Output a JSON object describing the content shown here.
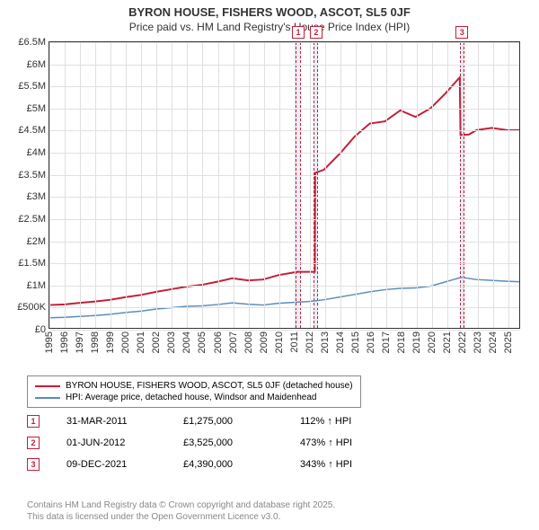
{
  "title": {
    "line1": "BYRON HOUSE, FISHERS WOOD, ASCOT, SL5 0JF",
    "line2": "Price paid vs. HM Land Registry's House Price Index (HPI)"
  },
  "chart": {
    "type": "line",
    "x_min": 1995,
    "x_max": 2025.8,
    "y_min": 0,
    "y_max": 6500000,
    "x_ticks": [
      1995,
      1996,
      1997,
      1998,
      1999,
      2000,
      2001,
      2002,
      2003,
      2004,
      2005,
      2006,
      2007,
      2008,
      2009,
      2010,
      2011,
      2012,
      2013,
      2014,
      2015,
      2016,
      2017,
      2018,
      2019,
      2020,
      2021,
      2022,
      2023,
      2024,
      2025
    ],
    "y_ticks": [
      {
        "v": 0,
        "label": "£0"
      },
      {
        "v": 500000,
        "label": "£500K"
      },
      {
        "v": 1000000,
        "label": "£1M"
      },
      {
        "v": 1500000,
        "label": "£1.5M"
      },
      {
        "v": 2000000,
        "label": "£2M"
      },
      {
        "v": 2500000,
        "label": "£2.5M"
      },
      {
        "v": 3000000,
        "label": "£3M"
      },
      {
        "v": 3500000,
        "label": "£3.5M"
      },
      {
        "v": 4000000,
        "label": "£4M"
      },
      {
        "v": 4500000,
        "label": "£4.5M"
      },
      {
        "v": 5000000,
        "label": "£5M"
      },
      {
        "v": 5500000,
        "label": "£5.5M"
      },
      {
        "v": 6000000,
        "label": "£6M"
      },
      {
        "v": 6500000,
        "label": "£6.5M"
      }
    ],
    "grid_color": "#e0e0e0",
    "background_color": "#ffffff",
    "marker_band_color": "#e8eef5",
    "marker_border_color": "#c41e3a",
    "series": [
      {
        "name": "property",
        "label": "BYRON HOUSE, FISHERS WOOD, ASCOT, SL5 0JF (detached house)",
        "color": "#c41e3a",
        "width": 2,
        "points": [
          [
            1995,
            520000
          ],
          [
            1996,
            535000
          ],
          [
            1997,
            570000
          ],
          [
            1998,
            600000
          ],
          [
            1999,
            640000
          ],
          [
            2000,
            700000
          ],
          [
            2001,
            750000
          ],
          [
            2002,
            820000
          ],
          [
            2003,
            880000
          ],
          [
            2004,
            940000
          ],
          [
            2005,
            980000
          ],
          [
            2006,
            1050000
          ],
          [
            2007,
            1130000
          ],
          [
            2008,
            1080000
          ],
          [
            2009,
            1100000
          ],
          [
            2010,
            1200000
          ],
          [
            2011,
            1260000
          ],
          [
            2011.25,
            1275000
          ],
          [
            2012,
            1275000
          ],
          [
            2012.4,
            1275000
          ],
          [
            2012.42,
            3525000
          ],
          [
            2013,
            3600000
          ],
          [
            2014,
            3950000
          ],
          [
            2015,
            4350000
          ],
          [
            2016,
            4650000
          ],
          [
            2017,
            4700000
          ],
          [
            2018,
            4950000
          ],
          [
            2019,
            4800000
          ],
          [
            2020,
            5000000
          ],
          [
            2021,
            5350000
          ],
          [
            2021.9,
            5700000
          ],
          [
            2021.95,
            4390000
          ],
          [
            2022.5,
            4400000
          ],
          [
            2023,
            4500000
          ],
          [
            2024,
            4550000
          ],
          [
            2025,
            4500000
          ],
          [
            2025.8,
            4500000
          ]
        ]
      },
      {
        "name": "hpi",
        "label": "HPI: Average price, detached house, Windsor and Maidenhead",
        "color": "#5b8db8",
        "width": 1.5,
        "points": [
          [
            1995,
            230000
          ],
          [
            1996,
            240000
          ],
          [
            1997,
            260000
          ],
          [
            1998,
            280000
          ],
          [
            1999,
            310000
          ],
          [
            2000,
            350000
          ],
          [
            2001,
            380000
          ],
          [
            2002,
            430000
          ],
          [
            2003,
            460000
          ],
          [
            2004,
            490000
          ],
          [
            2005,
            500000
          ],
          [
            2006,
            530000
          ],
          [
            2007,
            570000
          ],
          [
            2008,
            540000
          ],
          [
            2009,
            520000
          ],
          [
            2010,
            560000
          ],
          [
            2011,
            580000
          ],
          [
            2012,
            600000
          ],
          [
            2013,
            640000
          ],
          [
            2014,
            700000
          ],
          [
            2015,
            760000
          ],
          [
            2016,
            820000
          ],
          [
            2017,
            870000
          ],
          [
            2018,
            900000
          ],
          [
            2019,
            910000
          ],
          [
            2020,
            950000
          ],
          [
            2021,
            1050000
          ],
          [
            2022,
            1150000
          ],
          [
            2023,
            1100000
          ],
          [
            2024,
            1080000
          ],
          [
            2025,
            1060000
          ],
          [
            2025.8,
            1050000
          ]
        ]
      }
    ],
    "markers": [
      {
        "n": "1",
        "x": 2011.25,
        "band_width": 0.3
      },
      {
        "n": "2",
        "x": 2012.42,
        "band_width": 0.3
      },
      {
        "n": "3",
        "x": 2021.94,
        "band_width": 0.3
      }
    ]
  },
  "legend": {
    "rows": [
      {
        "color": "#c41e3a",
        "label": "BYRON HOUSE, FISHERS WOOD, ASCOT, SL5 0JF (detached house)"
      },
      {
        "color": "#5b8db8",
        "label": "HPI: Average price, detached house, Windsor and Maidenhead"
      }
    ]
  },
  "events": [
    {
      "n": "1",
      "date": "31-MAR-2011",
      "price": "£1,275,000",
      "pct": "112% ↑ HPI"
    },
    {
      "n": "2",
      "date": "01-JUN-2012",
      "price": "£3,525,000",
      "pct": "473% ↑ HPI"
    },
    {
      "n": "3",
      "date": "09-DEC-2021",
      "price": "£4,390,000",
      "pct": "343% ↑ HPI"
    }
  ],
  "footer": {
    "line1": "Contains HM Land Registry data © Crown copyright and database right 2025.",
    "line2": "This data is licensed under the Open Government Licence v3.0."
  }
}
